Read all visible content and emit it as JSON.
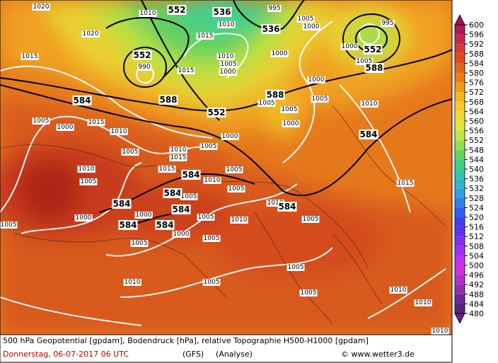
{
  "map": {
    "contour_labels": [
      "1020",
      "1020",
      "1015",
      "1010",
      "1010",
      "552",
      "536",
      "995",
      "536",
      "1005",
      "1000",
      "995",
      "552",
      "1000",
      "1005",
      "588",
      "552",
      "990",
      "1015",
      "1010",
      "1005",
      "1000",
      "1015",
      "1000",
      "1000",
      "588",
      "1005",
      "1005",
      "1005",
      "1000",
      "588",
      "584",
      "1015",
      "552",
      "1000",
      "1005",
      "1010",
      "1000",
      "1005",
      "1005",
      "1010",
      "1015",
      "1010",
      "1015",
      "584",
      "1005",
      "1010",
      "1005",
      "1005",
      "584",
      "584",
      "584",
      "1005",
      "1010",
      "584",
      "1000",
      "1000",
      "1005",
      "1010",
      "1005",
      "584",
      "584",
      "1000",
      "1005",
      "1005",
      "1005",
      "1015",
      "1010",
      "584",
      "1005",
      "1005",
      "1010",
      "1005",
      "1010",
      "1010",
      "1010"
    ],
    "colorbar": {
      "ticks": [
        600,
        596,
        592,
        588,
        584,
        580,
        576,
        572,
        568,
        564,
        560,
        556,
        552,
        548,
        544,
        540,
        536,
        532,
        528,
        524,
        520,
        516,
        512,
        508,
        504,
        500,
        496,
        492,
        488,
        484,
        480
      ],
      "colors": [
        "#b0185a",
        "#c82850",
        "#d83c30",
        "#e04a1e",
        "#e86418",
        "#f07c14",
        "#f49a14",
        "#f8b41c",
        "#f8cc28",
        "#f0dc30",
        "#e0e838",
        "#c0e840",
        "#90e050",
        "#60d860",
        "#40d080",
        "#30c8a8",
        "#30b8c8",
        "#30a0e0",
        "#3080f0",
        "#3060f0",
        "#4040f0",
        "#6030f0",
        "#8030f0",
        "#a030f0",
        "#c030f0",
        "#d030e0",
        "#b030c8",
        "#9030b0",
        "#702898",
        "#582080"
      ],
      "top_color": "#a01050",
      "bottom_color": "#6a1e7e"
    },
    "footer": {
      "description": "500 hPa Geopotential [gpdam], Bodendruck [hPa], relative Topographie H500-H1000 [gpdam]",
      "date": "Donnerstag, 06-07-2017  06 UTC",
      "model": "(GFS)",
      "run": "(Analyse)",
      "credit": "© www.wetter3.de"
    }
  }
}
